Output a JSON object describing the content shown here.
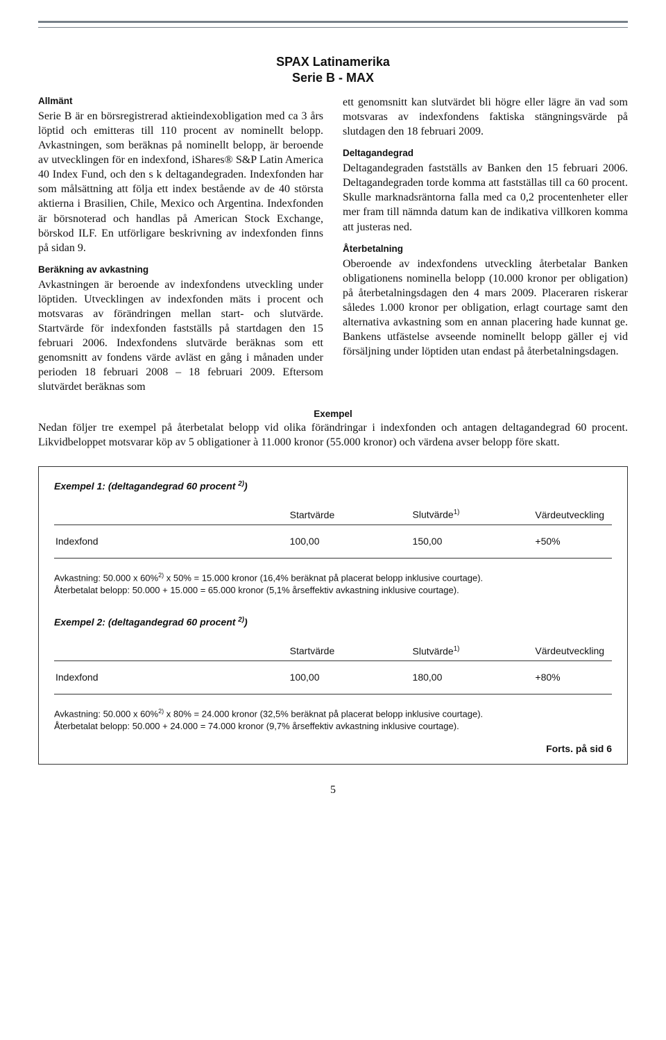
{
  "title": {
    "line1": "SPAX Latinamerika",
    "line2": "Serie B - MAX"
  },
  "left": {
    "h1": "Allmänt",
    "p1": "Serie B är en börsregistrerad aktieindexobligation med ca 3 års löptid och emitteras till 110 procent av nominellt belopp. Avkastningen, som beräknas på nominellt belopp, är beroende av utvecklingen för en indexfond, iShares® S&P Latin America 40 Index Fund, och den s k deltagandegraden. Indexfonden har som målsättning att följa ett index bestående av de 40 största aktierna i Brasilien, Chile, Mexico och Argentina. Indexfonden är börsnoterad och handlas på American Stock Exchange, börskod ILF. En utförligare beskrivning av indexfonden finns på sidan 9.",
    "h2": "Beräkning av avkastning",
    "p2": "Avkastningen är beroende av indexfondens utveckling under löptiden. Utvecklingen av indexfonden mäts i procent och motsvaras av förändringen mellan start- och slutvärde. Startvärde för indexfonden fastställs på startdagen den 15 februari 2006. Indexfondens slutvärde beräknas som ett genomsnitt av fondens värde avläst en gång i månaden under perioden 18 februari 2008 – 18 februari 2009. Eftersom slutvärdet beräknas som"
  },
  "right": {
    "p1": "ett genomsnitt kan slutvärdet bli högre eller lägre än vad som motsvaras av indexfondens faktiska stängningsvärde på slutdagen den 18 februari 2009.",
    "h1": "Deltagandegrad",
    "p2": "Deltagandegraden fastställs av Banken den 15 februari 2006. Deltagandegraden torde komma att fastställas till ca 60 procent. Skulle marknadsräntorna falla med ca 0,2 procentenheter eller mer fram till nämnda datum kan de indikativa villkoren komma att justeras ned.",
    "h2": "Återbetalning",
    "p3": "Oberoende av indexfondens utveckling återbetalar Banken obligationens nominella belopp (10.000 kronor per obligation) på återbetalningsdagen den 4 mars 2009. Placeraren riskerar således 1.000 kronor per obligation, erlagt courtage samt den alternativa avkastning som en annan placering hade kunnat ge. Bankens utfästelse avseende nominellt belopp gäller ej vid försäljning under löptiden utan endast på återbetalningsdagen."
  },
  "example": {
    "title": "Exempel",
    "intro": "Nedan följer tre exempel på återbetalat belopp vid olika förändringar i indexfonden och antagen deltagandegrad 60 procent. Likvidbeloppet motsvarar köp av 5 obligationer à 11.000 kronor (55.000 kronor) och värdena avser belopp före skatt.",
    "headers": {
      "start": "Startvärde",
      "end_html": "Slutvärde<span class='sup'>1)</span>",
      "dev": "Värdeutveckling"
    },
    "row_label": "Indexfond",
    "ex1": {
      "title_html": "Exempel 1: (deltagandegrad 60 procent <span class='sup'>2)</span>)",
      "start": "100,00",
      "end": "150,00",
      "dev": "+50%",
      "note1_html": "Avkastning: 50.000 x 60%<span class='sup'>2)</span> x 50% = 15.000 kronor (16,4% beräknat på placerat belopp inklusive courtage).",
      "note2": "Återbetalat belopp: 50.000 + 15.000 = 65.000 kronor (5,1% årseffektiv avkastning inklusive courtage)."
    },
    "ex2": {
      "title_html": "Exempel 2: (deltagandegrad 60 procent <span class='sup'>2)</span>)",
      "start": "100,00",
      "end": "180,00",
      "dev": "+80%",
      "note1_html": "Avkastning: 50.000 x 60%<span class='sup'>2)</span> x 80% = 24.000 kronor (32,5% beräknat på placerat belopp inklusive courtage).",
      "note2": "Återbetalat belopp: 50.000 + 24.000 = 74.000 kronor (9,7% årseffektiv avkastning inklusive courtage)."
    },
    "forts": "Forts. på sid 6"
  },
  "page_number": "5"
}
